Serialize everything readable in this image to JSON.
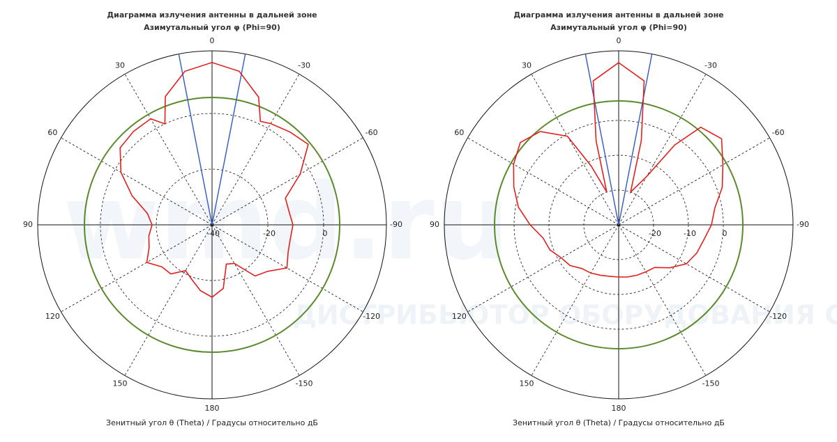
{
  "watermark": {
    "brand": "wmd.ru",
    "tagline": "ДИСТРИБЬЮТОР ОБОРУДОВАНИЯ СВЯЗИ"
  },
  "chart_data": [
    {
      "type": "polar",
      "title": "Диаграмма излучения антенны в дальней зоне",
      "subtitle": "Азимутальный угол φ (Phi=90)",
      "xlabel": "Зенитный угол θ (Theta) / Градусы относительно дБ",
      "angle_ticks": [
        0,
        30,
        60,
        90,
        120,
        150,
        180,
        -150,
        -120,
        -90,
        -60,
        -30
      ],
      "rlim": [
        -40,
        22.5
      ],
      "rticks": [
        -40,
        -20,
        0
      ],
      "reference_level": 5.75,
      "reference_color": "#5a8a2a",
      "beam_angles": [
        11,
        -11
      ],
      "beam_color": "#3a62c4",
      "theta": [
        -170,
        -160,
        -150,
        -140,
        -130,
        -120,
        -110,
        -100,
        -90,
        -80,
        -70,
        -60,
        -50,
        -40,
        -30,
        -25,
        -20,
        -10,
        0,
        10,
        20,
        25,
        30,
        40,
        50,
        60,
        70,
        80,
        90,
        100,
        110,
        120,
        130,
        140,
        150,
        160,
        170,
        180
      ],
      "series": [
        {
          "color": "#e0201c",
          "values": [
            -16.8,
            -25,
            -24,
            -16,
            -14,
            -9,
            -11,
            -11.5,
            -11,
            -12,
            -12,
            -3.5,
            5,
            3.5,
            2,
            1,
            8.8,
            16,
            18.3,
            16,
            9,
            0,
            4,
            3.8,
            3,
            -2.3,
            -9.5,
            -16.5,
            -18.5,
            -17,
            -16,
            -13,
            -16.5,
            -17,
            -21,
            -19,
            -16,
            -14
          ]
        }
      ]
    },
    {
      "type": "polar",
      "title": "Диаграмма излучения антенны в дальней зоне",
      "subtitle": "Азимутальный угол φ (Phi=90)",
      "xlabel": "Зенитный угол θ (Theta) / Градусы относительно дБ",
      "angle_ticks": [
        0,
        30,
        60,
        90,
        120,
        150,
        180,
        -150,
        -120,
        -90,
        -60,
        -30
      ],
      "rlim": [
        -30,
        20
      ],
      "rticks": [
        -20,
        -10,
        0
      ],
      "reference_level": 5.6,
      "reference_color": "#5a8a2a",
      "beam_angles": [
        11,
        -11
      ],
      "beam_color": "#3a62c4",
      "theta": [
        -170,
        -160,
        -150,
        -140,
        -130,
        -120,
        -110,
        -100,
        -90,
        -80,
        -70,
        -60,
        -50,
        -40,
        -35,
        -30,
        -20,
        -15,
        -10,
        0,
        10,
        15,
        20,
        25,
        30,
        40,
        50,
        60,
        70,
        80,
        90,
        100,
        110,
        120,
        130,
        140,
        150,
        160,
        170,
        180
      ],
      "series": [
        {
          "color": "#e0201c",
          "values": [
            -14.8,
            -14.6,
            -14.4,
            -14,
            -10.8,
            -7.6,
            -6.2,
            -5.2,
            -3.4,
            -2,
            1.6,
            4.5,
            8.5,
            6.6,
            -2,
            -14,
            -20,
            -5,
            12,
            16.6,
            12,
            -5,
            -20,
            -11.4,
            -0.6,
            5,
            6.8,
            4.8,
            2,
            -0.8,
            -4.6,
            -8,
            -9,
            -11,
            -11.8,
            -13.6,
            -14,
            -14.6,
            -15,
            -15
          ]
        }
      ]
    }
  ]
}
